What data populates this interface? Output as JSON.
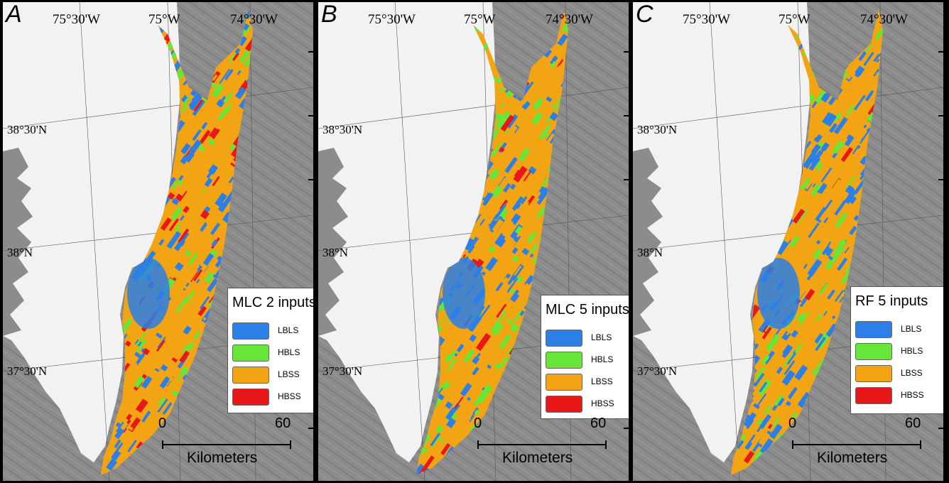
{
  "colors": {
    "LBLS": "#2c7fe6",
    "HBLS": "#66e636",
    "LBSS": "#f2a413",
    "HBSS": "#e81818",
    "land": "#f2f2f2",
    "sea": "#8c8c8c",
    "bathy_dark": "#6f6f6f"
  },
  "panels": [
    {
      "letter": "A",
      "lon_labels": [
        "75°30'W",
        "75°W",
        "74°30'W"
      ],
      "lat_labels": [
        "38°30'N",
        "38°N",
        "37°30'N"
      ],
      "legend": {
        "title": "MLC 2 inputs",
        "items": [
          {
            "label": "LBLS",
            "color_key": "LBLS"
          },
          {
            "label": "HBLS",
            "color_key": "HBLS"
          },
          {
            "label": "LBSS",
            "color_key": "LBSS"
          },
          {
            "label": "HBSS",
            "color_key": "HBSS"
          }
        ]
      },
      "scale": {
        "zero": "0",
        "max": "60",
        "unit": "Kilometers"
      },
      "class_mix": {
        "LBLS": 0.28,
        "HBLS": 0.18,
        "LBSS": 0.42,
        "HBSS": 0.12
      }
    },
    {
      "letter": "B",
      "lon_labels": [
        "75°30'W",
        "75°W",
        "74°30'W"
      ],
      "lat_labels": [
        "38°30'N",
        "38°N",
        "37°30'N"
      ],
      "legend": {
        "title": "MLC 5 inputs",
        "items": [
          {
            "label": "LBLS",
            "color_key": "LBLS"
          },
          {
            "label": "HBLS",
            "color_key": "HBLS"
          },
          {
            "label": "LBSS",
            "color_key": "LBSS"
          },
          {
            "label": "HBSS",
            "color_key": "HBSS"
          }
        ]
      },
      "scale": {
        "zero": "0",
        "max": "60",
        "unit": "Kilometers"
      },
      "class_mix": {
        "LBLS": 0.3,
        "HBLS": 0.22,
        "LBSS": 0.44,
        "HBSS": 0.04
      }
    },
    {
      "letter": "C",
      "lon_labels": [
        "75°30'W",
        "75°W",
        "74°30'W"
      ],
      "lat_labels": [
        "38°30'N",
        "38°N",
        "37°30'N"
      ],
      "legend": {
        "title": "RF 5 inputs",
        "items": [
          {
            "label": "LBLS",
            "color_key": "LBLS"
          },
          {
            "label": "HBLS",
            "color_key": "HBLS"
          },
          {
            "label": "LBSS",
            "color_key": "LBSS"
          },
          {
            "label": "HBSS",
            "color_key": "HBSS"
          }
        ]
      },
      "scale": {
        "zero": "0",
        "max": "60",
        "unit": "Kilometers"
      },
      "class_mix": {
        "LBLS": 0.4,
        "HBLS": 0.18,
        "LBSS": 0.37,
        "HBSS": 0.05
      }
    }
  ]
}
